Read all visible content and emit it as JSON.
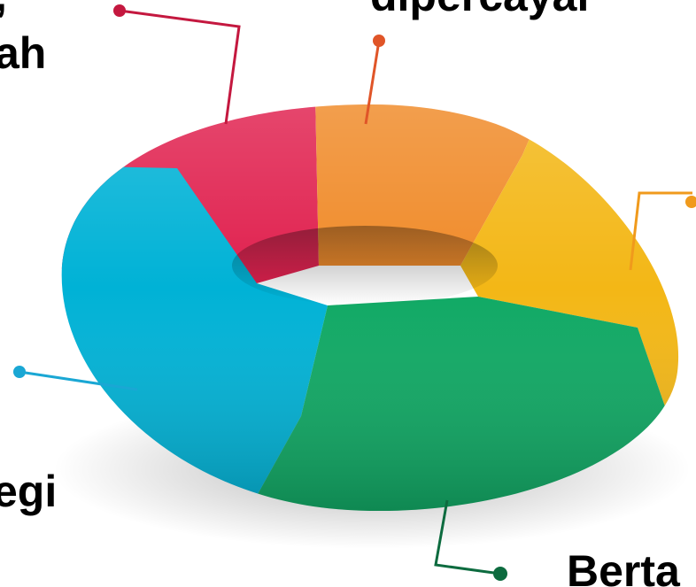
{
  "labels": {
    "top_left_line1": ",",
    "top_left_line2": "ah",
    "top_center": "dipercayai",
    "bottom_left": "egi",
    "bottom_right": "Berta"
  },
  "colors": {
    "crimson": "#E0204E",
    "orange": "#F08A28",
    "yellow": "#F3B716",
    "cyan": "#00B2D6",
    "green": "#0FA964"
  }
}
